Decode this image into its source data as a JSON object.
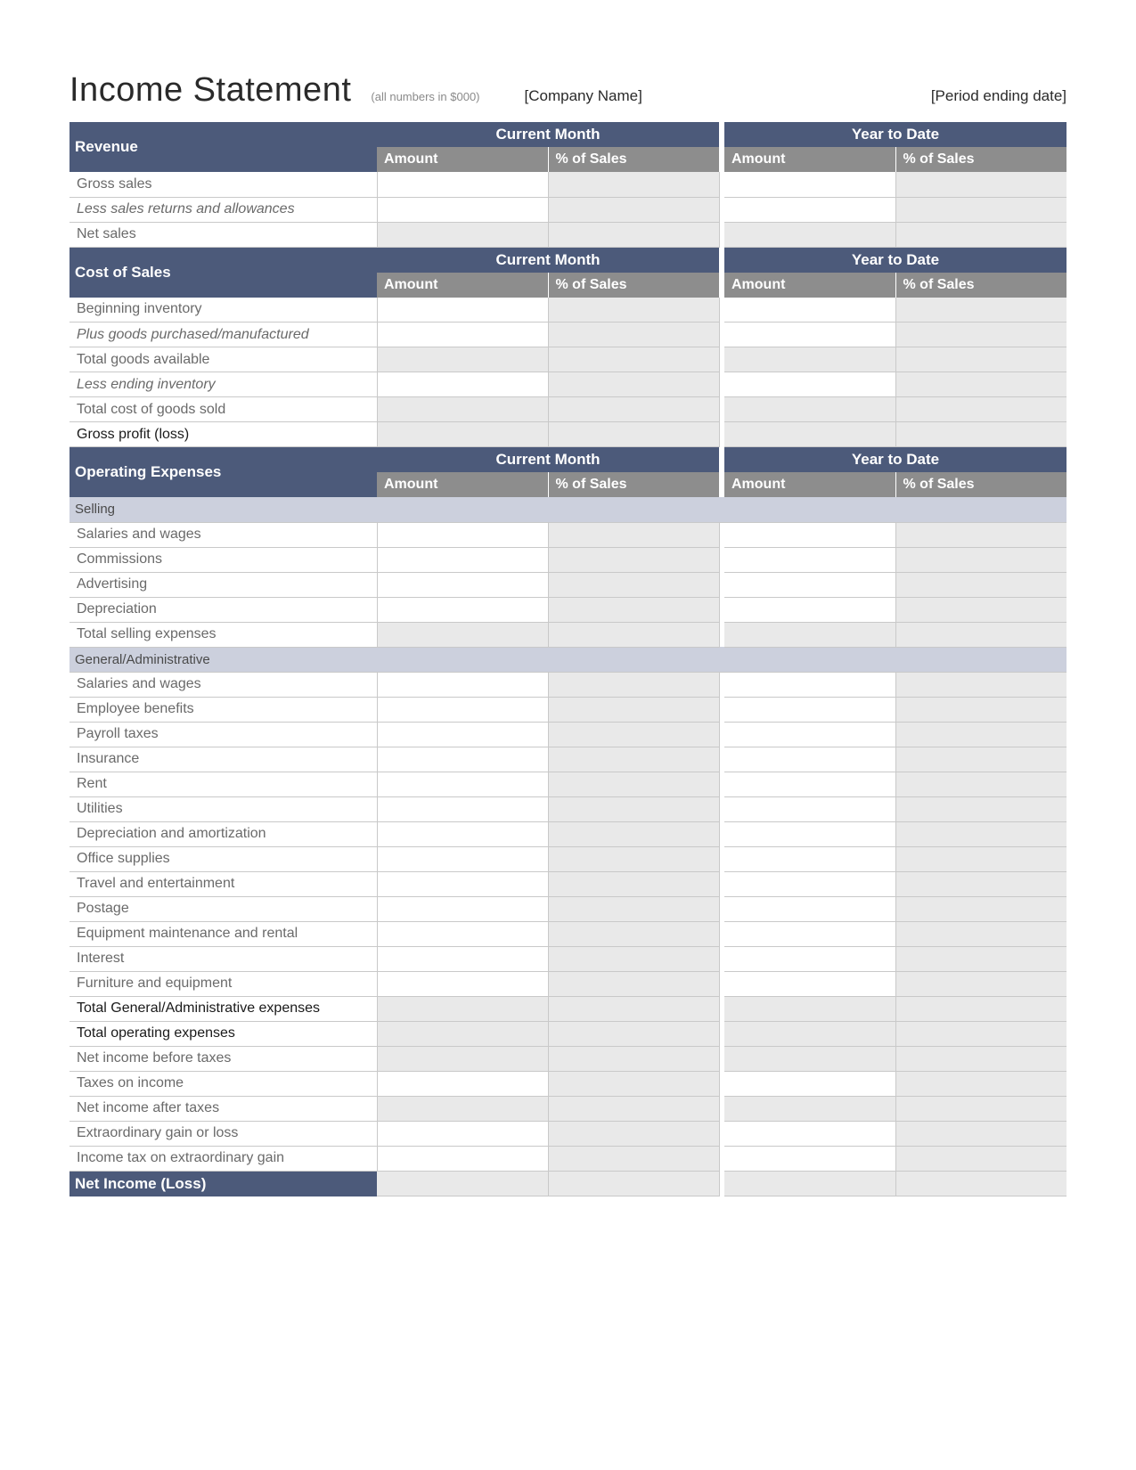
{
  "header": {
    "title": "Income Statement",
    "subtitle": "(all numbers in $000)",
    "company": "[Company Name]",
    "period": "[Period ending date]"
  },
  "columns": {
    "current_month": "Current Month",
    "year_to_date": "Year to Date",
    "amount": "Amount",
    "pct_of_sales": "% of Sales"
  },
  "sections": {
    "revenue": {
      "title": "Revenue",
      "rows": [
        {
          "label": "Gross sales",
          "style": "",
          "hatched_pct": true,
          "amount_input": true
        },
        {
          "label": "Less sales returns and allowances",
          "style": "italic",
          "hatched_pct": true,
          "amount_input": true
        },
        {
          "label": "Net sales",
          "style": "",
          "all_calc": true
        }
      ]
    },
    "cost_of_sales": {
      "title": "Cost of Sales",
      "rows": [
        {
          "label": "Beginning inventory",
          "style": "",
          "amount_input": true
        },
        {
          "label": "Plus goods purchased/manufactured",
          "style": "italic",
          "amount_input": true
        },
        {
          "label": "Total goods available",
          "style": "",
          "all_calc": true
        },
        {
          "label": "Less ending inventory",
          "style": "italic",
          "amount_input": true
        },
        {
          "label": "Total cost of goods sold",
          "style": "",
          "all_calc": true
        },
        {
          "label": "Gross profit (loss)",
          "style": "bold-strong",
          "all_calc": true
        }
      ]
    },
    "operating": {
      "title": "Operating Expenses",
      "subsections": [
        {
          "title": "Selling",
          "rows": [
            {
              "label": "Salaries and wages",
              "amount_input": true
            },
            {
              "label": "Commissions",
              "amount_input": true
            },
            {
              "label": "Advertising",
              "amount_input": true
            },
            {
              "label": "Depreciation",
              "amount_input": true
            },
            {
              "label": "Total selling expenses",
              "all_calc": true
            }
          ]
        },
        {
          "title": "General/Administrative",
          "rows": [
            {
              "label": "Salaries and wages",
              "amount_input": true
            },
            {
              "label": "Employee benefits",
              "amount_input": true
            },
            {
              "label": "Payroll taxes",
              "amount_input": true
            },
            {
              "label": "Insurance",
              "amount_input": true
            },
            {
              "label": "Rent",
              "amount_input": true
            },
            {
              "label": "Utilities",
              "amount_input": true
            },
            {
              "label": "Depreciation and amortization",
              "amount_input": true
            },
            {
              "label": "Office supplies",
              "amount_input": true
            },
            {
              "label": "Travel and entertainment",
              "amount_input": true
            },
            {
              "label": "Postage",
              "amount_input": true
            },
            {
              "label": "Equipment maintenance and rental",
              "amount_input": true
            },
            {
              "label": "Interest",
              "amount_input": true
            },
            {
              "label": "Furniture and equipment",
              "amount_input": true
            },
            {
              "label": "Total General/Administrative expenses",
              "style": "bold-strong",
              "all_calc": true
            },
            {
              "label": "Total operating expenses",
              "style": "bold-strong",
              "all_calc": true
            },
            {
              "label": "Net income before taxes",
              "all_calc": true
            },
            {
              "label": "Taxes on income",
              "amount_input": true
            },
            {
              "label": "Net income after taxes",
              "all_calc": true
            },
            {
              "label": "Extraordinary gain or loss",
              "amount_input": true
            },
            {
              "label": "Income tax on extraordinary gain",
              "amount_input": true
            }
          ]
        }
      ]
    },
    "net_income": {
      "title": "Net Income (Loss)"
    }
  },
  "colors": {
    "section_header_bg": "#4c5a7a",
    "sub_header_bg": "#8d8d8d",
    "subsection_bg": "#ccd0dd",
    "calc_bg": "#e9e9e9",
    "border": "#c9c9c9",
    "text": "#6a6a6a"
  }
}
